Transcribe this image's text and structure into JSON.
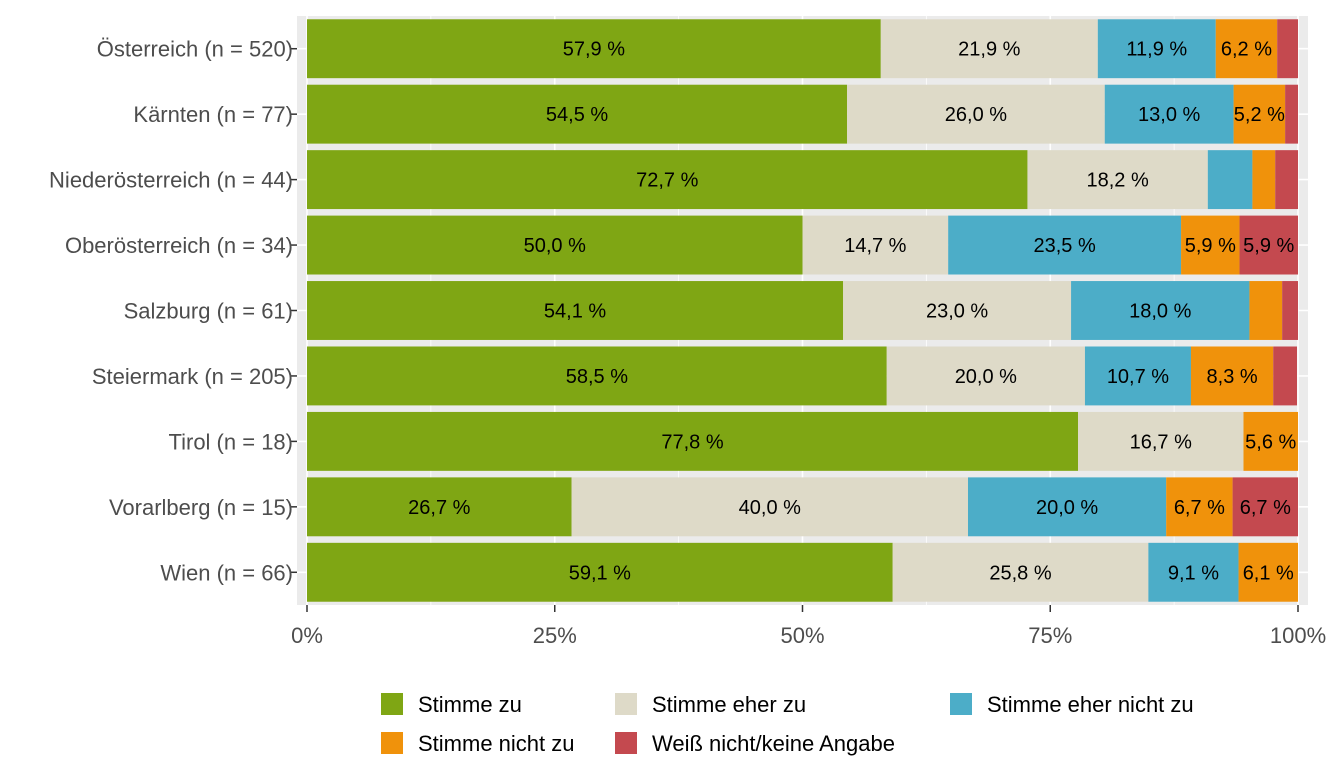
{
  "chart_data": {
    "type": "bar",
    "orientation": "horizontal",
    "stacked": "percent",
    "categories": [
      "Österreich (n = 520)",
      "Kärnten (n = 77)",
      "Niederösterreich (n = 44)",
      "Oberösterreich (n = 34)",
      "Salzburg (n = 61)",
      "Steiermark (n = 205)",
      "Tirol (n = 18)",
      "Vorarlberg (n = 15)",
      "Wien (n = 66)"
    ],
    "series": [
      {
        "name": "Stimme zu",
        "color": "#7fa614",
        "values": [
          57.9,
          54.5,
          72.7,
          50.0,
          54.1,
          58.5,
          77.8,
          26.7,
          59.1
        ],
        "labels": [
          "57,9 %",
          "54,5 %",
          "72,7 %",
          "50,0 %",
          "54,1 %",
          "58,5 %",
          "77,8 %",
          "26,7 %",
          "59,1 %"
        ]
      },
      {
        "name": "Stimme eher zu",
        "color": "#dedac8",
        "values": [
          21.9,
          26.0,
          18.2,
          14.7,
          23.0,
          20.0,
          16.7,
          40.0,
          25.8
        ],
        "labels": [
          "21,9 %",
          "26,0 %",
          "18,2 %",
          "14,7 %",
          "23,0 %",
          "20,0 %",
          "16,7 %",
          "40,0 %",
          "25,8 %"
        ]
      },
      {
        "name": "Stimme eher nicht zu",
        "color": "#4cadc8",
        "values": [
          11.9,
          13.0,
          4.5,
          23.5,
          18.0,
          10.7,
          0,
          20.0,
          9.1
        ],
        "labels": [
          "11,9 %",
          "13,0 %",
          "",
          "23,5 %",
          "18,0 %",
          "10,7 %",
          "",
          "20,0 %",
          "9,1 %"
        ]
      },
      {
        "name": "Stimme nicht zu",
        "color": "#f0920b",
        "values": [
          6.2,
          5.2,
          2.3,
          5.9,
          3.3,
          8.3,
          5.6,
          6.7,
          6.1
        ],
        "labels": [
          "6,2 %",
          "5,2 %",
          "",
          "5,9 %",
          "",
          "8,3 %",
          "5,6 %",
          "6,7 %",
          "6,1 %"
        ]
      },
      {
        "name": "Weiß nicht/keine Angabe",
        "color": "#c4494f",
        "values": [
          2.2,
          1.3,
          2.3,
          5.9,
          1.6,
          2.4,
          0,
          6.7,
          0
        ],
        "labels": [
          "",
          "",
          "",
          "5,9 %",
          "",
          "",
          "",
          "6,7 %",
          ""
        ]
      }
    ],
    "xlim": [
      0,
      100
    ],
    "xticks": [
      0,
      25,
      50,
      75,
      100
    ],
    "xtick_labels": [
      "0%",
      "25%",
      "50%",
      "75%",
      "100%"
    ],
    "grid": true,
    "background": "#ebebeb",
    "legend_position": "bottom",
    "title": "",
    "xlabel": "",
    "ylabel": ""
  }
}
